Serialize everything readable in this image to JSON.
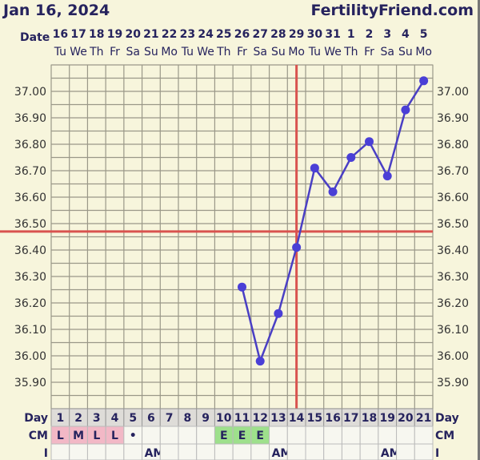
{
  "header": {
    "date": "Jan 16, 2024",
    "brand": "FertilityFriend.com",
    "date_label": "Date"
  },
  "chart_data": {
    "type": "line",
    "dates": [
      "16",
      "17",
      "18",
      "19",
      "20",
      "21",
      "22",
      "23",
      "24",
      "25",
      "26",
      "27",
      "28",
      "29",
      "30",
      "31",
      "1",
      "2",
      "3",
      "4",
      "5"
    ],
    "weekdays": [
      "Tu",
      "We",
      "Th",
      "Fr",
      "Sa",
      "Su",
      "Mo",
      "Tu",
      "We",
      "Th",
      "Fr",
      "Sa",
      "Su",
      "Mo",
      "Tu",
      "We",
      "Th",
      "Fr",
      "Sa",
      "Su",
      "Mo"
    ],
    "days": [
      1,
      2,
      3,
      4,
      5,
      6,
      7,
      8,
      9,
      10,
      11,
      12,
      13,
      14,
      15,
      16,
      17,
      18,
      19,
      20,
      21
    ],
    "temperatures": [
      null,
      null,
      null,
      null,
      null,
      null,
      null,
      null,
      null,
      null,
      36.26,
      35.98,
      36.16,
      36.41,
      36.71,
      36.62,
      36.75,
      36.81,
      36.68,
      36.93,
      37.04
    ],
    "ylim": [
      35.8,
      37.1
    ],
    "yticks": [
      "37.00",
      "36.90",
      "36.80",
      "36.70",
      "36.60",
      "36.50",
      "36.40",
      "36.30",
      "36.20",
      "36.10",
      "36.00",
      "35.90"
    ],
    "coverline": 36.47,
    "ovulation_day": 14,
    "grid": true,
    "colors": {
      "line": "#4a3fc4",
      "marker": "#4a3fd6",
      "coverline": "#d9534f",
      "ovulation": "#d9534f",
      "grid": "#9a9888",
      "plot_bg": "#f7f5dc"
    }
  },
  "rows": {
    "day_label": "Day",
    "cm_label": "CM",
    "i_label": "I",
    "cm": [
      "L",
      "M",
      "L",
      "L",
      "•",
      "",
      "",
      "",
      "",
      "E",
      "E",
      "E",
      "",
      "",
      "",
      "",
      "",
      "",
      "",
      "",
      ""
    ],
    "cm_colors": {
      "L": "#f2b8c6",
      "M": "#f2b8c6",
      "E": "#9ee08c"
    },
    "i": [
      "",
      "",
      "",
      "",
      "",
      "AM",
      "",
      "",
      "",
      "",
      "",
      "",
      "AM",
      "",
      "",
      "",
      "",
      "",
      "AM",
      "",
      ""
    ]
  }
}
